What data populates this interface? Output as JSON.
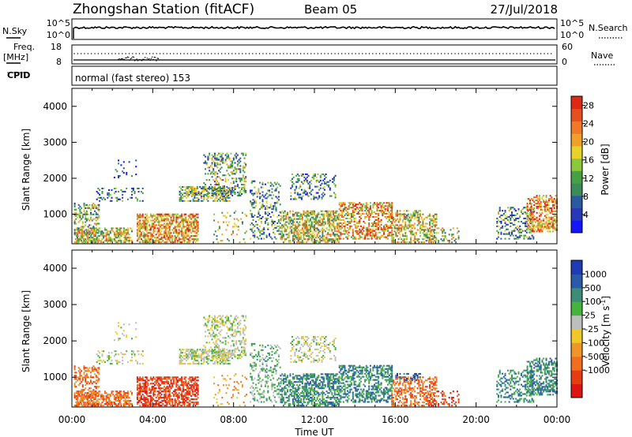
{
  "header": {
    "station": "Zhongshan Station (fitACF)",
    "beam": "Beam 05",
    "date": "27/Jul/2018"
  },
  "strip_labels": {
    "nsky": "N.Sky",
    "nsearch": "N.Search",
    "freq": "Freq.",
    "freq_unit": "[MHz]",
    "nave": "Nave",
    "cpid": "CPID",
    "nsky_ticks": [
      "10^5",
      "10^0"
    ],
    "nsearch_ticks": [
      "10^5",
      "10^0"
    ],
    "freq_ticks": [
      "18",
      "8"
    ],
    "nave_ticks": [
      "60",
      "0"
    ],
    "cpid_text": "normal (fast stereo) 153"
  },
  "chart_data": [
    {
      "type": "heatmap",
      "name": "power",
      "ylabel": "Slant Range [km]",
      "xlabel": "",
      "ylim": [
        180,
        4500
      ],
      "xlim_hours": [
        0,
        24
      ],
      "y_ticks": [
        "1000",
        "2000",
        "3000",
        "4000"
      ],
      "colorbar": {
        "label": "Power [dB]",
        "ticks": [
          "4",
          "8",
          "12",
          "16",
          "20",
          "24",
          "28"
        ],
        "range": [
          0,
          30
        ],
        "colors": [
          "#1414ff",
          "#2838b8",
          "#2c5aa0",
          "#3c8c5a",
          "#46a046",
          "#8cc83c",
          "#e6d228",
          "#f0a028",
          "#f07828",
          "#e65020",
          "#dc2814"
        ]
      }
    },
    {
      "type": "heatmap",
      "name": "velocity",
      "ylabel": "Slant Range [km]",
      "xlabel": "Time UT",
      "ylim": [
        180,
        4500
      ],
      "xlim_hours": [
        0,
        24
      ],
      "x_ticks": [
        "00:00",
        "04:00",
        "08:00",
        "12:00",
        "16:00",
        "20:00",
        "00:00"
      ],
      "y_ticks": [
        "1000",
        "2000",
        "3000",
        "4000"
      ],
      "colorbar": {
        "label": "Velocity [m s",
        "label_sup": "-1",
        "label_end": "]",
        "ticks": [
          "1000",
          "500",
          "100",
          "25",
          "-25",
          "-100",
          "-500",
          "-1000"
        ],
        "colors": [
          "#1e3cb4",
          "#2a5aa8",
          "#3c8c78",
          "#46b43c",
          "#bebebe",
          "#f0c828",
          "#f09628",
          "#f06e1e",
          "#e63c14",
          "#dc1414"
        ]
      }
    }
  ]
}
